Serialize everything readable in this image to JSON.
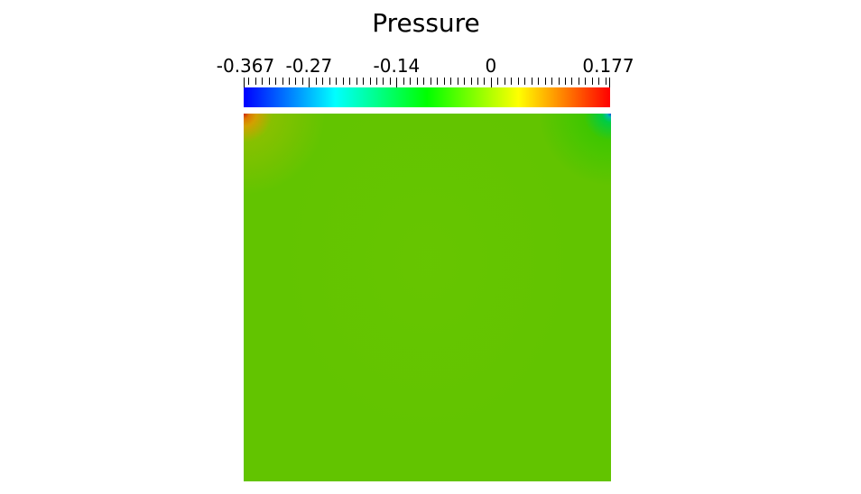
{
  "title": "Pressure",
  "colorbar": {
    "range": [
      -0.367,
      0.177
    ],
    "tick_labels": [
      {
        "text": "-0.367",
        "value": -0.367
      },
      {
        "text": "-0.27",
        "value": -0.27
      },
      {
        "text": "-0.14",
        "value": -0.14
      },
      {
        "text": "0",
        "value": 0
      },
      {
        "text": "0.177",
        "value": 0.177
      }
    ],
    "colormap": [
      "#0000ff",
      "#00ffff",
      "#00ff00",
      "#ffff00",
      "#ff0000"
    ]
  },
  "field": {
    "dominant_color": "#62c400"
  }
}
